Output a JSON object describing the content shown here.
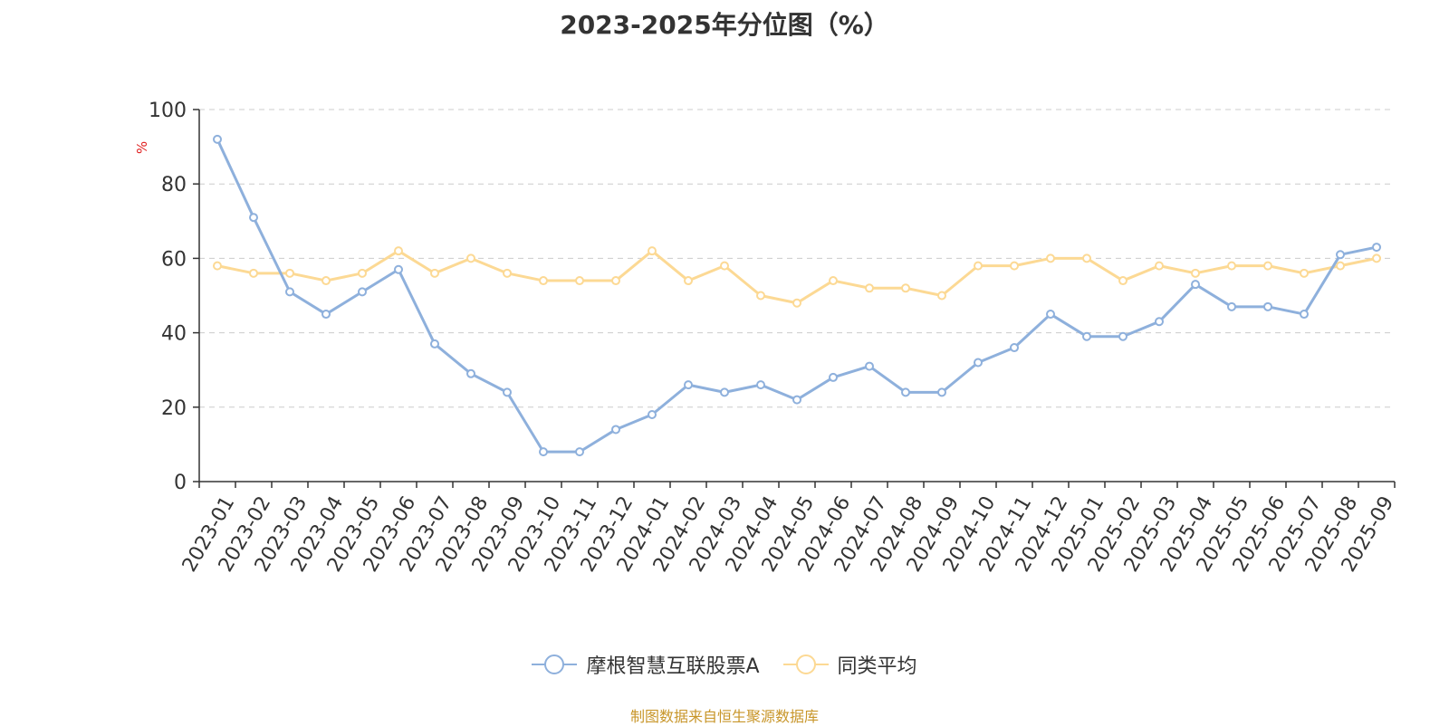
{
  "chart_data": {
    "type": "line",
    "title": "2023-2025年分位图（%）",
    "ylabel": "%",
    "ylim": [
      0,
      100
    ],
    "yticks": [
      0,
      20,
      40,
      60,
      80,
      100
    ],
    "grid": true,
    "legend_position": "bottom",
    "categories": [
      "2023-01",
      "2023-02",
      "2023-03",
      "2023-04",
      "2023-05",
      "2023-06",
      "2023-07",
      "2023-08",
      "2023-09",
      "2023-10",
      "2023-11",
      "2023-12",
      "2024-01",
      "2024-02",
      "2024-03",
      "2024-04",
      "2024-05",
      "2024-06",
      "2024-07",
      "2024-08",
      "2024-09",
      "2024-10",
      "2024-11",
      "2024-12",
      "2025-01",
      "2025-02",
      "2025-03",
      "2025-04",
      "2025-05",
      "2025-06",
      "2025-07",
      "2025-08",
      "2025-09"
    ],
    "series": [
      {
        "name": "摩根智慧互联股票A",
        "color": "#8eb0dc",
        "values": [
          92,
          71,
          51,
          45,
          51,
          57,
          37,
          29,
          24,
          8,
          8,
          14,
          18,
          26,
          24,
          26,
          22,
          28,
          31,
          24,
          24,
          32,
          36,
          45,
          39,
          39,
          43,
          53,
          47,
          47,
          45,
          61,
          63
        ]
      },
      {
        "name": "同类平均",
        "color": "#fcd994",
        "values": [
          58,
          56,
          56,
          54,
          56,
          62,
          56,
          60,
          56,
          54,
          54,
          54,
          62,
          54,
          58,
          50,
          48,
          54,
          52,
          52,
          50,
          58,
          58,
          60,
          60,
          54,
          58,
          56,
          58,
          58,
          56,
          58,
          60
        ]
      }
    ]
  },
  "source_note": "制图数据来自恒生聚源数据库"
}
